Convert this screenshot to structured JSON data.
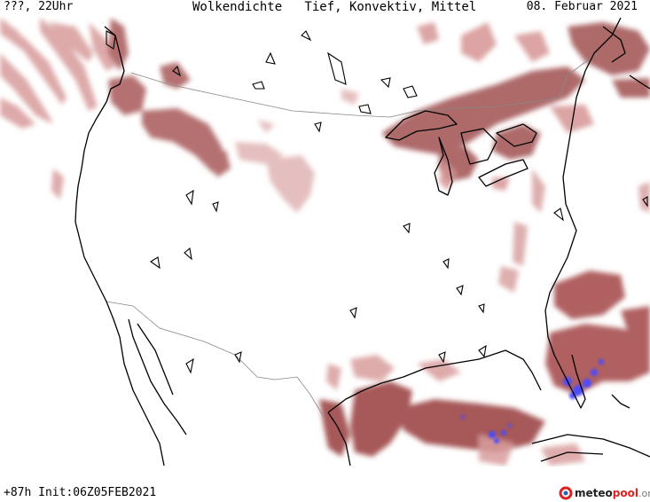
{
  "header": {
    "time_label": "???, 22Uhr",
    "title": "Wolkendichte   Tief, Konvektiv, Mittel",
    "date": "08. Februar 2021"
  },
  "footer": {
    "forecast_info": "+87h Init:06Z05FEB2021"
  },
  "logo": {
    "part1": "meteo",
    "part2": "pool",
    "part3": ".org"
  },
  "colors": {
    "cloud_light": "#e6bcbc",
    "cloud_mid": "#c98383",
    "cloud_dark": "#a04a4a",
    "convective": "#4b4bff",
    "coast": "#000000",
    "border": "#888888"
  }
}
